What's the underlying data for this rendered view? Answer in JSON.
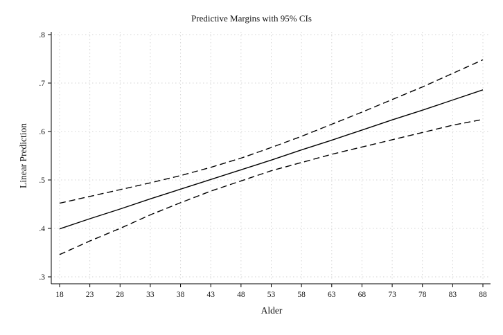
{
  "chart_data": {
    "type": "line",
    "title": "Predictive Margins with 95% CIs",
    "xlabel": "Alder",
    "ylabel": "Linear Prediction",
    "x": [
      18,
      23,
      28,
      33,
      38,
      43,
      48,
      53,
      58,
      63,
      68,
      73,
      78,
      83,
      88
    ],
    "x_tick_labels": [
      "18",
      "23",
      "28",
      "33",
      "38",
      "43",
      "48",
      "53",
      "58",
      "63",
      "68",
      "73",
      "78",
      "83",
      "88"
    ],
    "y_ticks": [
      0.3,
      0.4,
      0.5,
      0.6,
      0.7,
      0.8
    ],
    "y_tick_labels": [
      ".3",
      ".4",
      ".5",
      ".6",
      ".7",
      ".8"
    ],
    "xlim": [
      18,
      88
    ],
    "ylim": [
      0.3,
      0.8
    ],
    "grid": true,
    "series": [
      {
        "role": "estimate",
        "style": "solid",
        "values": [
          0.399,
          0.42,
          0.44,
          0.461,
          0.481,
          0.501,
          0.521,
          0.541,
          0.562,
          0.582,
          0.603,
          0.624,
          0.644,
          0.665,
          0.686
        ]
      },
      {
        "role": "upper_ci",
        "style": "dashed",
        "values": [
          0.452,
          0.466,
          0.48,
          0.494,
          0.509,
          0.526,
          0.545,
          0.567,
          0.59,
          0.615,
          0.64,
          0.666,
          0.692,
          0.72,
          0.748
        ]
      },
      {
        "role": "lower_ci",
        "style": "dashed",
        "values": [
          0.346,
          0.374,
          0.4,
          0.428,
          0.453,
          0.477,
          0.498,
          0.519,
          0.536,
          0.553,
          0.568,
          0.583,
          0.598,
          0.613,
          0.625
        ]
      }
    ],
    "colors": {
      "line": "#000000",
      "grid": "#d4d4d4",
      "axis": "#000000"
    }
  }
}
